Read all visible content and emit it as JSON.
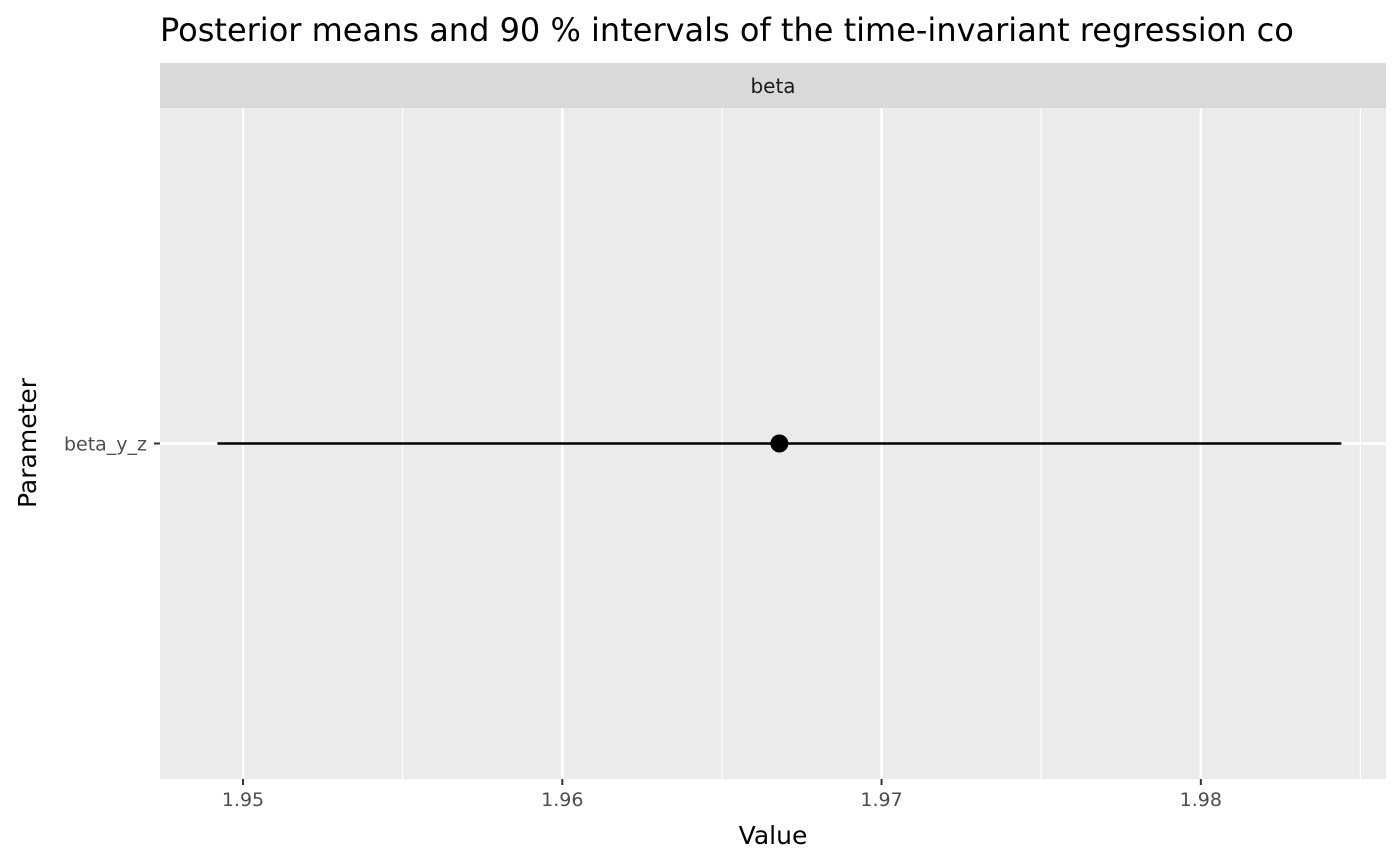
{
  "chart_data": {
    "type": "pointrange",
    "title": "Posterior means and 90 % intervals of the time-invariant regression co",
    "facet": "beta",
    "xlabel": "Value",
    "ylabel": "Parameter",
    "x_ticks": [
      1.95,
      1.96,
      1.97,
      1.98
    ],
    "x_tick_labels": [
      "1.95",
      "1.96",
      "1.97",
      "1.98"
    ],
    "xlim": [
      1.9474,
      1.9858
    ],
    "categories": [
      "beta_y_z"
    ],
    "points": [
      {
        "parameter": "beta_y_z",
        "mean": 1.9668,
        "lower": 1.9492,
        "upper": 1.9844
      }
    ],
    "grid": true,
    "colors": {
      "panel_background": "#ebebeb",
      "strip_background": "#d9d9d9",
      "grid": "#ffffff",
      "mark": "#000000"
    }
  }
}
